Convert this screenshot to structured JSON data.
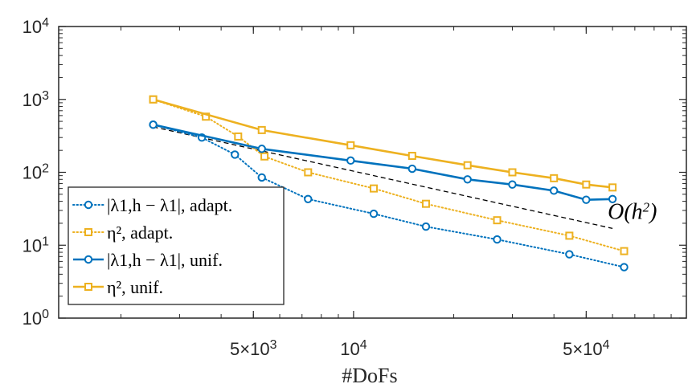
{
  "chart_data": {
    "type": "line",
    "xlabel": "#DoFs",
    "ylabel": "",
    "xscale": "log",
    "yscale": "log",
    "xlim": [
      1300,
      100000
    ],
    "ylim": [
      1,
      10000
    ],
    "x_ticks": [
      {
        "value": 5000,
        "mant": "5",
        "exp": "3"
      },
      {
        "value": 10000,
        "mant": "",
        "exp": "4"
      },
      {
        "value": 50000,
        "mant": "5",
        "exp": "4"
      }
    ],
    "y_ticks": [
      {
        "value": 1,
        "exp": "0"
      },
      {
        "value": 10,
        "exp": "1"
      },
      {
        "value": 100,
        "exp": "2"
      },
      {
        "value": 1000,
        "exp": "3"
      },
      {
        "value": 10000,
        "exp": "4"
      }
    ],
    "grid": false,
    "legend_position": "bottom-left",
    "colors": {
      "blue": "#0072BD",
      "orange": "#EDB120",
      "axis": "#262626",
      "reference": "#000000"
    },
    "series": [
      {
        "name": "|λ1,h − λ1|, adapt.",
        "color": "#0072BD",
        "line": "dotted",
        "marker": "circle",
        "x": [
          2500,
          3500,
          4400,
          5300,
          7300,
          11500,
          16500,
          27000,
          44500,
          65000
        ],
        "y": [
          450,
          300,
          175,
          85,
          43,
          27,
          18,
          12,
          7.5,
          5
        ]
      },
      {
        "name": "η², adapt.",
        "color": "#EDB120",
        "line": "dotted",
        "marker": "square",
        "x": [
          2500,
          3600,
          4500,
          5400,
          7300,
          11500,
          16500,
          27000,
          44500,
          65000
        ],
        "y": [
          1000,
          580,
          310,
          165,
          100,
          60,
          37,
          22,
          13.5,
          8.3
        ]
      },
      {
        "name": "|λ1,h − λ1|, unif.",
        "color": "#0072BD",
        "line": "solid",
        "marker": "circle",
        "x": [
          2500,
          5300,
          9800,
          15000,
          22000,
          30000,
          40000,
          50000,
          60000
        ],
        "y": [
          450,
          210,
          145,
          112,
          80,
          68,
          56,
          42,
          43
        ]
      },
      {
        "name": "η², unif.",
        "color": "#EDB120",
        "line": "solid",
        "marker": "square",
        "x": [
          2500,
          5300,
          9800,
          15000,
          22000,
          30000,
          40000,
          50000,
          60000
        ],
        "y": [
          1000,
          380,
          235,
          168,
          125,
          100,
          83,
          68,
          62
        ]
      }
    ],
    "reference_line": {
      "label_prefix": "O(h",
      "label_exp": "2",
      "label_suffix": ")",
      "x": [
        2500,
        60000
      ],
      "y": [
        420,
        17
      ]
    }
  }
}
